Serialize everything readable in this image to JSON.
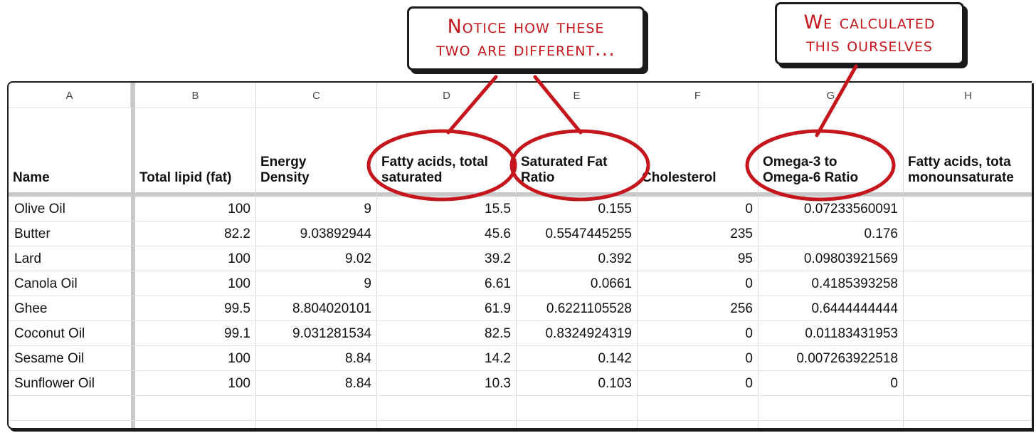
{
  "callouts": {
    "left_line1": "Notice how these",
    "left_line2": "two are different...",
    "right_line1": "We calculated",
    "right_line2": "this ourselves"
  },
  "columns": [
    "A",
    "B",
    "C",
    "D",
    "E",
    "F",
    "G",
    "H"
  ],
  "headers": [
    {
      "l1": "",
      "l2": "Name"
    },
    {
      "l1": "",
      "l2": "Total lipid (fat)"
    },
    {
      "l1": "Energy",
      "l2": "Density"
    },
    {
      "l1": "Fatty acids, total",
      "l2": "saturated"
    },
    {
      "l1": "Saturated Fat",
      "l2": "Ratio"
    },
    {
      "l1": "",
      "l2": "Cholesterol"
    },
    {
      "l1": "Omega-3 to",
      "l2": "Omega-6 Ratio"
    },
    {
      "l1": "Fatty acids, tota",
      "l2": "monounsaturate"
    }
  ],
  "rows": [
    [
      "Olive Oil",
      "100",
      "9",
      "15.5",
      "0.155",
      "0",
      "0.07233560091",
      ""
    ],
    [
      "Butter",
      "82.2",
      "9.03892944",
      "45.6",
      "0.5547445255",
      "235",
      "0.176",
      ""
    ],
    [
      "Lard",
      "100",
      "9.02",
      "39.2",
      "0.392",
      "95",
      "0.09803921569",
      ""
    ],
    [
      "Canola Oil",
      "100",
      "9",
      "6.61",
      "0.0661",
      "0",
      "0.4185393258",
      ""
    ],
    [
      "Ghee",
      "99.5",
      "8.804020101",
      "61.9",
      "0.6221105528",
      "256",
      "0.6444444444",
      ""
    ],
    [
      "Coconut Oil",
      "99.1",
      "9.031281534",
      "82.5",
      "0.8324924319",
      "0",
      "0.01183431953",
      ""
    ],
    [
      "Sesame Oil",
      "100",
      "8.84",
      "14.2",
      "0.142",
      "0",
      "0.007263922518",
      ""
    ],
    [
      "Sunflower Oil",
      "100",
      "8.84",
      "10.3",
      "0.103",
      "0",
      "0",
      ""
    ]
  ],
  "colors": {
    "annotation_red": "#c4161c",
    "outline": "#1b1b1b"
  }
}
